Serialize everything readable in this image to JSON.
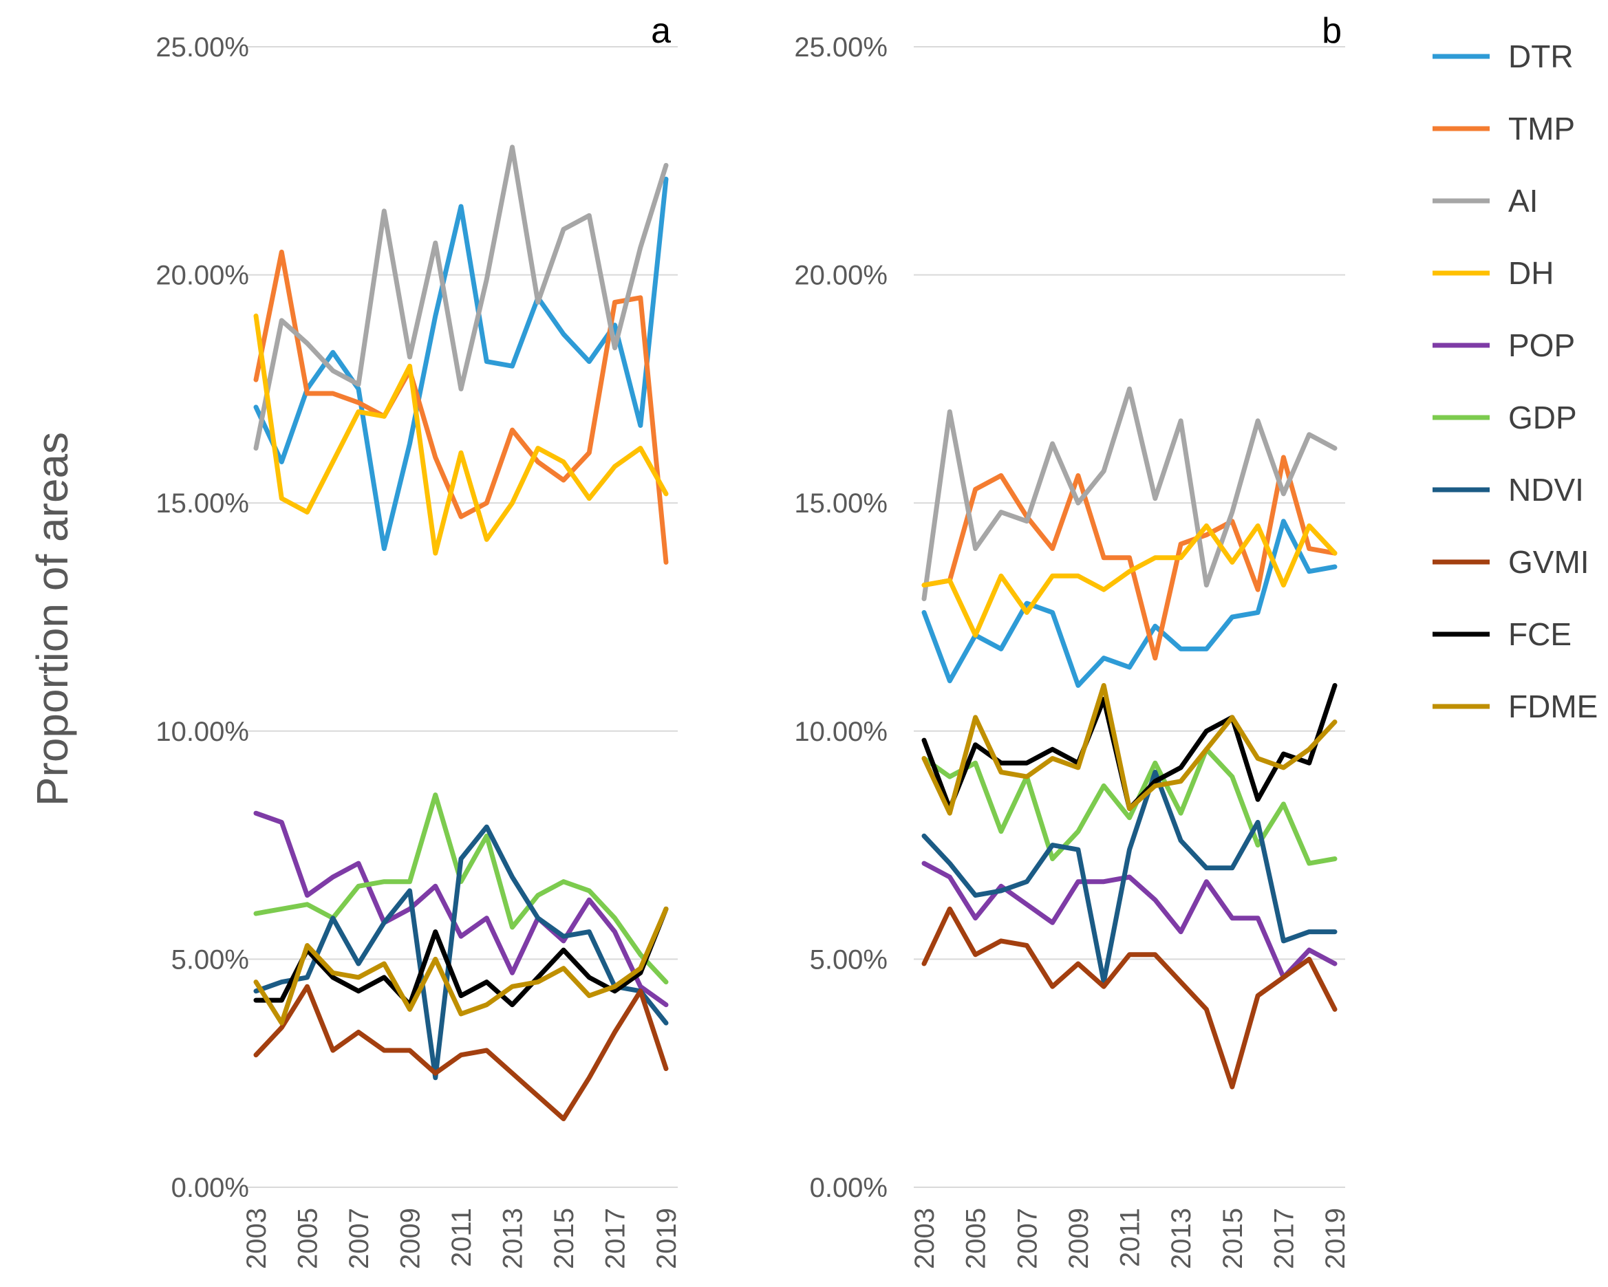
{
  "figure": {
    "ylabel": "Proportion of areas",
    "legend_position": "right"
  },
  "chart_data": [
    {
      "type": "line",
      "panel_label": "a",
      "x": [
        "2003",
        "2004",
        "2005",
        "2006",
        "2007",
        "2008",
        "2009",
        "2010",
        "2011",
        "2012",
        "2013",
        "2014",
        "2015",
        "2016",
        "2017",
        "2018",
        "2019"
      ],
      "x_tick_labels": [
        "2003",
        "2005",
        "2007",
        "2009",
        "2011",
        "2013",
        "2015",
        "2017",
        "2019"
      ],
      "y_tick_labels": [
        "0.00%",
        "5.00%",
        "10.00%",
        "15.00%",
        "20.00%",
        "25.00%"
      ],
      "ylim": [
        0,
        25
      ],
      "grid": true,
      "series": [
        {
          "name": "DTR",
          "color": "#2E9BD6",
          "values": [
            17.1,
            15.9,
            17.5,
            18.3,
            17.5,
            14.0,
            16.3,
            19.1,
            21.5,
            18.1,
            18.0,
            19.5,
            18.7,
            18.1,
            18.9,
            16.7,
            22.1
          ]
        },
        {
          "name": "TMP",
          "color": "#F47C30",
          "values": [
            17.7,
            20.5,
            17.4,
            17.4,
            17.2,
            16.9,
            17.9,
            16.0,
            14.7,
            15.0,
            16.6,
            15.9,
            15.5,
            16.1,
            19.4,
            19.5,
            13.7
          ]
        },
        {
          "name": "AI",
          "color": "#A6A6A6",
          "values": [
            16.2,
            19.0,
            18.5,
            17.9,
            17.6,
            21.4,
            18.2,
            20.7,
            17.5,
            19.9,
            22.8,
            19.4,
            21.0,
            21.3,
            18.4,
            20.6,
            22.4
          ]
        },
        {
          "name": "DH",
          "color": "#FFC000",
          "values": [
            19.1,
            15.1,
            14.8,
            15.9,
            17.0,
            16.9,
            18.0,
            13.9,
            16.1,
            14.2,
            15.0,
            16.2,
            15.9,
            15.1,
            15.8,
            16.2,
            15.2
          ]
        },
        {
          "name": "POP",
          "color": "#7E3BA6",
          "values": [
            8.2,
            8.0,
            6.4,
            6.8,
            7.1,
            5.8,
            6.1,
            6.6,
            5.5,
            5.9,
            4.7,
            5.9,
            5.4,
            6.3,
            5.6,
            4.4,
            4.0
          ]
        },
        {
          "name": "GDP",
          "color": "#7CCB4E",
          "values": [
            6.0,
            6.1,
            6.2,
            5.9,
            6.6,
            6.7,
            6.7,
            8.6,
            6.7,
            7.7,
            5.7,
            6.4,
            6.7,
            6.5,
            5.9,
            5.1,
            4.5
          ]
        },
        {
          "name": "NDVI",
          "color": "#1B5B85",
          "values": [
            4.3,
            4.5,
            4.6,
            5.9,
            4.9,
            5.8,
            6.5,
            2.4,
            7.2,
            7.9,
            6.8,
            5.9,
            5.5,
            5.6,
            4.4,
            4.3,
            3.6
          ]
        },
        {
          "name": "GVMI",
          "color": "#A33F0F",
          "values": [
            2.9,
            3.5,
            4.4,
            3.0,
            3.4,
            3.0,
            3.0,
            2.5,
            2.9,
            3.0,
            2.5,
            2.0,
            1.5,
            2.4,
            3.4,
            4.3,
            2.6
          ]
        },
        {
          "name": "FCE",
          "color": "#000000",
          "values": [
            4.1,
            4.1,
            5.2,
            4.6,
            4.3,
            4.6,
            4.0,
            5.6,
            4.2,
            4.5,
            4.0,
            4.6,
            5.2,
            4.6,
            4.3,
            4.7,
            6.1
          ]
        },
        {
          "name": "FDME",
          "color": "#BF8F00",
          "values": [
            4.5,
            3.6,
            5.3,
            4.7,
            4.6,
            4.9,
            3.9,
            5.0,
            3.8,
            4.0,
            4.4,
            4.5,
            4.8,
            4.2,
            4.4,
            4.8,
            6.1
          ]
        }
      ]
    },
    {
      "type": "line",
      "panel_label": "b",
      "x": [
        "2003",
        "2004",
        "2005",
        "2006",
        "2007",
        "2008",
        "2009",
        "2010",
        "2011",
        "2012",
        "2013",
        "2014",
        "2015",
        "2016",
        "2017",
        "2018",
        "2019"
      ],
      "x_tick_labels": [
        "2003",
        "2005",
        "2007",
        "2009",
        "2011",
        "2013",
        "2015",
        "2017",
        "2019"
      ],
      "y_tick_labels": [
        "0.00%",
        "5.00%",
        "10.00%",
        "15.00%",
        "20.00%",
        "25.00%"
      ],
      "ylim": [
        0,
        25
      ],
      "grid": true,
      "series": [
        {
          "name": "DTR",
          "color": "#2E9BD6",
          "values": [
            12.6,
            11.1,
            12.1,
            11.8,
            12.8,
            12.6,
            11.0,
            11.6,
            11.4,
            12.3,
            11.8,
            11.8,
            12.5,
            12.6,
            14.6,
            13.5,
            13.6
          ]
        },
        {
          "name": "TMP",
          "color": "#F47C30",
          "values": [
            13.2,
            13.3,
            15.3,
            15.6,
            14.7,
            14.0,
            15.6,
            13.8,
            13.8,
            11.6,
            14.1,
            14.3,
            14.6,
            13.1,
            16.0,
            14.0,
            13.9
          ]
        },
        {
          "name": "AI",
          "color": "#A6A6A6",
          "values": [
            12.9,
            17.0,
            14.0,
            14.8,
            14.6,
            16.3,
            15.0,
            15.7,
            17.5,
            15.1,
            16.8,
            13.2,
            14.8,
            16.8,
            15.2,
            16.5,
            16.2
          ]
        },
        {
          "name": "DH",
          "color": "#FFC000",
          "values": [
            13.2,
            13.3,
            12.1,
            13.4,
            12.6,
            13.4,
            13.4,
            13.1,
            13.5,
            13.8,
            13.8,
            14.5,
            13.7,
            14.5,
            13.2,
            14.5,
            13.9
          ]
        },
        {
          "name": "POP",
          "color": "#7E3BA6",
          "values": [
            7.1,
            6.8,
            5.9,
            6.6,
            6.2,
            5.8,
            6.7,
            6.7,
            6.8,
            6.3,
            5.6,
            6.7,
            5.9,
            5.9,
            4.6,
            5.2,
            4.9
          ]
        },
        {
          "name": "GDP",
          "color": "#7CCB4E",
          "values": [
            9.4,
            9.0,
            9.3,
            7.8,
            9.0,
            7.2,
            7.8,
            8.8,
            8.1,
            9.3,
            8.2,
            9.6,
            9.0,
            7.5,
            8.4,
            7.1,
            7.2
          ]
        },
        {
          "name": "NDVI",
          "color": "#1B5B85",
          "values": [
            7.7,
            7.1,
            6.4,
            6.5,
            6.7,
            7.5,
            7.4,
            4.5,
            7.4,
            9.1,
            7.6,
            7.0,
            7.0,
            8.0,
            5.4,
            5.6,
            5.6
          ]
        },
        {
          "name": "GVMI",
          "color": "#A33F0F",
          "values": [
            4.9,
            6.1,
            5.1,
            5.4,
            5.3,
            4.4,
            4.9,
            4.4,
            5.1,
            5.1,
            4.5,
            3.9,
            2.2,
            4.2,
            4.6,
            5.0,
            3.9
          ]
        },
        {
          "name": "FCE",
          "color": "#000000",
          "values": [
            9.8,
            8.3,
            9.7,
            9.3,
            9.3,
            9.6,
            9.3,
            10.7,
            8.3,
            8.9,
            9.2,
            10.0,
            10.3,
            8.5,
            9.5,
            9.3,
            11.0
          ]
        },
        {
          "name": "FDME",
          "color": "#BF8F00",
          "values": [
            9.4,
            8.2,
            10.3,
            9.1,
            9.0,
            9.4,
            9.2,
            11.0,
            8.3,
            8.8,
            8.9,
            9.6,
            10.3,
            9.4,
            9.2,
            9.6,
            10.2
          ]
        }
      ]
    }
  ]
}
